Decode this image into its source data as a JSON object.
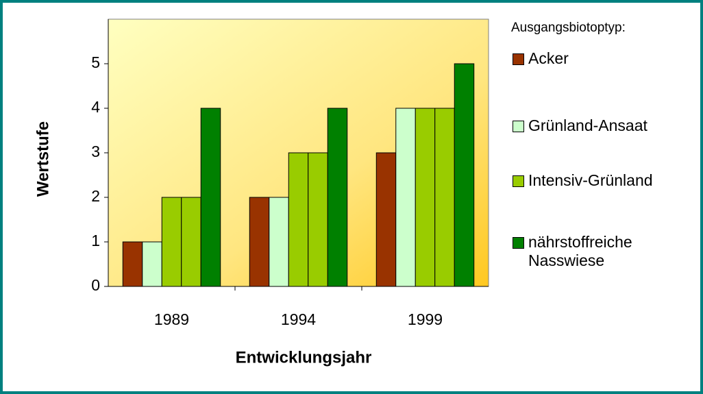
{
  "chart_data": {
    "type": "bar",
    "legend_title": "Ausgangsbiotoptyp:",
    "xlabel": "Entwicklungsjahr",
    "ylabel": "Wertstufe",
    "categories": [
      "1989",
      "1994",
      "1999"
    ],
    "series": [
      {
        "name": "Acker",
        "color": "#993300",
        "values": [
          1,
          2,
          3
        ]
      },
      {
        "name": "Grünland-Ansaat",
        "color": "#ccffcc",
        "values": [
          1,
          2,
          4
        ]
      },
      {
        "name": "Intensiv-Grünland",
        "color": "#99cc00",
        "values": [
          2,
          3,
          4
        ]
      },
      {
        "color": "#99cc00",
        "values": [
          2,
          3,
          4
        ]
      },
      {
        "name": "nährstoffreiche Nasswiese",
        "color": "#008000",
        "values": [
          4,
          4,
          5
        ]
      }
    ],
    "ylim": [
      0,
      6
    ],
    "yticks": [
      0,
      1,
      2,
      3,
      4,
      5
    ],
    "grid": false,
    "legend": "right"
  }
}
